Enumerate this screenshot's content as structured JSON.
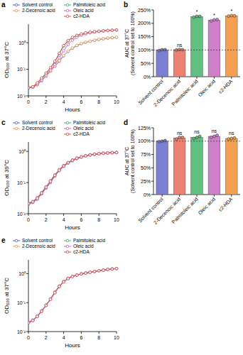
{
  "chart_data": [
    {
      "type": "line",
      "panel": "a",
      "y_label": "OD₆₀₀ at 37°C",
      "x_label": "Hours",
      "log": "y",
      "grid": false,
      "legend": "top-left",
      "marker": "circle",
      "x": [
        0,
        0.5,
        1,
        1.5,
        2,
        2.5,
        3,
        3.5,
        4,
        4.5,
        5,
        5.5,
        6,
        6.5,
        7,
        7.5,
        8,
        8.5,
        9,
        9.5,
        10
      ],
      "xlim": [
        0,
        10
      ],
      "xticks": [
        0,
        2,
        4,
        6,
        8,
        10
      ],
      "ylim": [
        0.01,
        5
      ],
      "yticks": [
        {
          "value": 0.01,
          "label": "10⁻²"
        },
        {
          "value": 0.1,
          "label": "10⁻¹"
        },
        {
          "value": 1,
          "label": "10⁰"
        }
      ],
      "series": [
        {
          "name": "Solvent control",
          "color": "#5566cc",
          "values": [
            0.02,
            0.021,
            0.026,
            0.037,
            0.055,
            0.085,
            0.13,
            0.2,
            0.32,
            0.47,
            0.62,
            0.78,
            0.92,
            1.03,
            1.13,
            1.23,
            1.32,
            1.4,
            1.48,
            1.54,
            1.6
          ]
        },
        {
          "name": "2-Decenoic acid",
          "color": "#f0a050",
          "values": [
            0.021,
            0.022,
            0.027,
            0.038,
            0.057,
            0.088,
            0.135,
            0.21,
            0.33,
            0.48,
            0.64,
            0.8,
            0.94,
            1.05,
            1.15,
            1.25,
            1.34,
            1.42,
            1.5,
            1.56,
            1.62
          ]
        },
        {
          "name": "Palmitoleic acid",
          "color": "#3cb371",
          "values": [
            0.02,
            0.022,
            0.03,
            0.045,
            0.07,
            0.11,
            0.19,
            0.38,
            0.75,
            1.15,
            1.55,
            1.85,
            2.1,
            2.3,
            2.45,
            2.6,
            2.7,
            2.8,
            2.9,
            2.95,
            3.0
          ]
        },
        {
          "name": "Oleic acid",
          "color": "#cc66bb",
          "values": [
            0.02,
            0.021,
            0.028,
            0.04,
            0.062,
            0.095,
            0.15,
            0.27,
            0.5,
            0.85,
            1.25,
            1.6,
            1.9,
            2.15,
            2.35,
            2.5,
            2.65,
            2.75,
            2.85,
            2.92,
            3.0
          ]
        },
        {
          "name": "c2-HDA",
          "color": "#e04848",
          "values": [
            0.02,
            0.022,
            0.031,
            0.047,
            0.072,
            0.115,
            0.2,
            0.4,
            0.78,
            1.2,
            1.6,
            1.9,
            2.15,
            2.35,
            2.5,
            2.62,
            2.72,
            2.82,
            2.9,
            2.96,
            3.02
          ]
        }
      ]
    },
    {
      "type": "bar",
      "panel": "b",
      "y_label": [
        "AUC at 37°C",
        "(Solvent control set to 100%)"
      ],
      "grid": false,
      "categories": [
        "Solvent control",
        "2-Decenoic acid",
        "Palmitoleic acid",
        "Oleic acid",
        "c2-HDA"
      ],
      "values": [
        100,
        101,
        225,
        212,
        228
      ],
      "replicates": [
        [
          98,
          101,
          101
        ],
        [
          100,
          102,
          101
        ],
        [
          223,
          226,
          226
        ],
        [
          209,
          213,
          214
        ],
        [
          227,
          229,
          228
        ]
      ],
      "annotations": [
        null,
        "ns",
        "*",
        "*",
        "*"
      ],
      "reference": 100,
      "colors": [
        "#7b7fd4",
        "#f08070",
        "#60c080",
        "#d080c8",
        "#f5a050"
      ],
      "ylim": [
        0,
        250
      ],
      "yticks": [
        {
          "value": 0,
          "label": "0%"
        },
        {
          "value": 50,
          "label": "50%"
        },
        {
          "value": 100,
          "label": "100%"
        },
        {
          "value": 150,
          "label": "150%"
        },
        {
          "value": 200,
          "label": "200%"
        },
        {
          "value": 250,
          "label": "250%"
        }
      ]
    },
    {
      "type": "line",
      "panel": "c",
      "y_label": "OD₆₀₀ at 39°C",
      "x_label": "Hours",
      "log": "y",
      "grid": false,
      "legend": "top-left",
      "marker": "circle",
      "x": [
        0,
        0.5,
        1,
        1.5,
        2,
        2.5,
        3,
        3.5,
        4,
        4.5,
        5,
        5.5,
        6,
        6.5,
        7,
        7.5,
        8,
        8.5,
        9,
        9.5,
        10
      ],
      "xlim": [
        0,
        10
      ],
      "xticks": [
        0,
        2,
        4,
        6,
        8,
        10
      ],
      "ylim": [
        0.01,
        2
      ],
      "yticks": [
        {
          "value": 0.01,
          "label": "10⁻²"
        },
        {
          "value": 0.1,
          "label": "10⁻¹"
        },
        {
          "value": 1,
          "label": "10⁰"
        }
      ],
      "series": [
        {
          "name": "Solvent control",
          "color": "#5566cc",
          "values": [
            0.02,
            0.023,
            0.029,
            0.043,
            0.066,
            0.1,
            0.16,
            0.24,
            0.33,
            0.42,
            0.5,
            0.58,
            0.65,
            0.71,
            0.76,
            0.8,
            0.83,
            0.86,
            0.88,
            0.9,
            0.91
          ]
        },
        {
          "name": "2-Decenoic acid",
          "color": "#f0a050",
          "values": [
            0.021,
            0.024,
            0.031,
            0.046,
            0.07,
            0.11,
            0.17,
            0.25,
            0.34,
            0.43,
            0.52,
            0.6,
            0.66,
            0.72,
            0.77,
            0.81,
            0.84,
            0.87,
            0.89,
            0.9,
            0.92
          ]
        },
        {
          "name": "Palmitoleic acid",
          "color": "#3cb371",
          "values": [
            0.021,
            0.024,
            0.032,
            0.047,
            0.072,
            0.11,
            0.17,
            0.26,
            0.35,
            0.44,
            0.53,
            0.61,
            0.67,
            0.73,
            0.78,
            0.82,
            0.85,
            0.88,
            0.9,
            0.91,
            0.93
          ]
        },
        {
          "name": "Oleic acid",
          "color": "#cc66bb",
          "values": [
            0.022,
            0.025,
            0.033,
            0.048,
            0.074,
            0.115,
            0.18,
            0.26,
            0.35,
            0.44,
            0.53,
            0.61,
            0.67,
            0.73,
            0.78,
            0.82,
            0.85,
            0.88,
            0.9,
            0.92,
            0.93
          ]
        },
        {
          "name": "c2-HDA",
          "color": "#e04848",
          "values": [
            0.021,
            0.024,
            0.031,
            0.046,
            0.071,
            0.11,
            0.17,
            0.25,
            0.34,
            0.43,
            0.52,
            0.6,
            0.66,
            0.72,
            0.77,
            0.81,
            0.84,
            0.87,
            0.89,
            0.91,
            0.92
          ]
        }
      ]
    },
    {
      "type": "bar",
      "panel": "d",
      "y_label": [
        "AUC at 37°C",
        "(Solvent control set to 100%)"
      ],
      "grid": false,
      "categories": [
        "Solvent control",
        "2-Decenoic acid",
        "Palmitoleic acid",
        "Oleic acid",
        "c2-HDA"
      ],
      "values": [
        100,
        106,
        107,
        109,
        105
      ],
      "replicates": [
        [
          99,
          100,
          101
        ],
        [
          104,
          107,
          107
        ],
        [
          105,
          107,
          109
        ],
        [
          107,
          109,
          111
        ],
        [
          104,
          105,
          106
        ]
      ],
      "annotations": [
        null,
        "ns",
        "ns",
        "ns",
        "ns"
      ],
      "reference": 100,
      "colors": [
        "#7b7fd4",
        "#f08070",
        "#60c080",
        "#d080c8",
        "#f5a050"
      ],
      "ylim": [
        0,
        125
      ],
      "yticks": [
        {
          "value": 0,
          "label": "0%"
        },
        {
          "value": 25,
          "label": "25%"
        },
        {
          "value": 50,
          "label": "50%"
        },
        {
          "value": 75,
          "label": "75%"
        },
        {
          "value": 100,
          "label": "100%"
        },
        {
          "value": 125,
          "label": "125%"
        }
      ]
    },
    {
      "type": "line",
      "panel": "e",
      "y_label": "OD₆₀₀ at 37°C",
      "x_label": "Hours",
      "log": "y",
      "grid": false,
      "legend": "top-left",
      "marker": "circle",
      "x": [
        0,
        0.5,
        1,
        1.5,
        2,
        2.5,
        3,
        3.5,
        4,
        4.5,
        5,
        5.5,
        6,
        6.5,
        7,
        7.5,
        8,
        8.5,
        9,
        9.5,
        10
      ],
      "xlim": [
        0,
        10
      ],
      "xticks": [
        0,
        2,
        4,
        6,
        8,
        10
      ],
      "ylim": [
        0.01,
        3
      ],
      "yticks": [
        {
          "value": 0.01,
          "label": "10⁻²"
        },
        {
          "value": 0.1,
          "label": "10⁻¹"
        },
        {
          "value": 1,
          "label": "10⁰"
        }
      ],
      "series": [
        {
          "name": "Solvent control",
          "color": "#5566cc",
          "values": [
            0.02,
            0.024,
            0.033,
            0.05,
            0.08,
            0.13,
            0.22,
            0.36,
            0.52,
            0.68,
            0.8,
            0.9,
            0.98,
            1.05,
            1.12,
            1.2,
            1.27,
            1.33,
            1.4,
            1.45,
            1.5
          ]
        },
        {
          "name": "2-Decenoic acid",
          "color": "#f0a050",
          "values": [
            0.02,
            0.024,
            0.034,
            0.051,
            0.081,
            0.13,
            0.22,
            0.37,
            0.53,
            0.69,
            0.81,
            0.91,
            0.99,
            1.06,
            1.13,
            1.21,
            1.28,
            1.34,
            1.41,
            1.46,
            1.51
          ]
        },
        {
          "name": "Palmitoleic acid",
          "color": "#3cb371",
          "values": [
            0.021,
            0.025,
            0.034,
            0.052,
            0.082,
            0.135,
            0.23,
            0.37,
            0.53,
            0.68,
            0.8,
            0.9,
            0.98,
            1.05,
            1.12,
            1.19,
            1.26,
            1.32,
            1.39,
            1.44,
            1.49
          ]
        },
        {
          "name": "Oleic acid",
          "color": "#cc66bb",
          "values": [
            0.021,
            0.025,
            0.035,
            0.053,
            0.083,
            0.135,
            0.23,
            0.38,
            0.54,
            0.69,
            0.81,
            0.91,
            0.99,
            1.06,
            1.13,
            1.2,
            1.27,
            1.33,
            1.4,
            1.46,
            1.5
          ]
        },
        {
          "name": "c2-HDA",
          "color": "#e04848",
          "values": [
            0.02,
            0.024,
            0.033,
            0.05,
            0.08,
            0.13,
            0.22,
            0.36,
            0.52,
            0.67,
            0.79,
            0.89,
            0.97,
            1.04,
            1.11,
            1.19,
            1.26,
            1.32,
            1.39,
            1.45,
            1.5
          ]
        }
      ]
    }
  ]
}
